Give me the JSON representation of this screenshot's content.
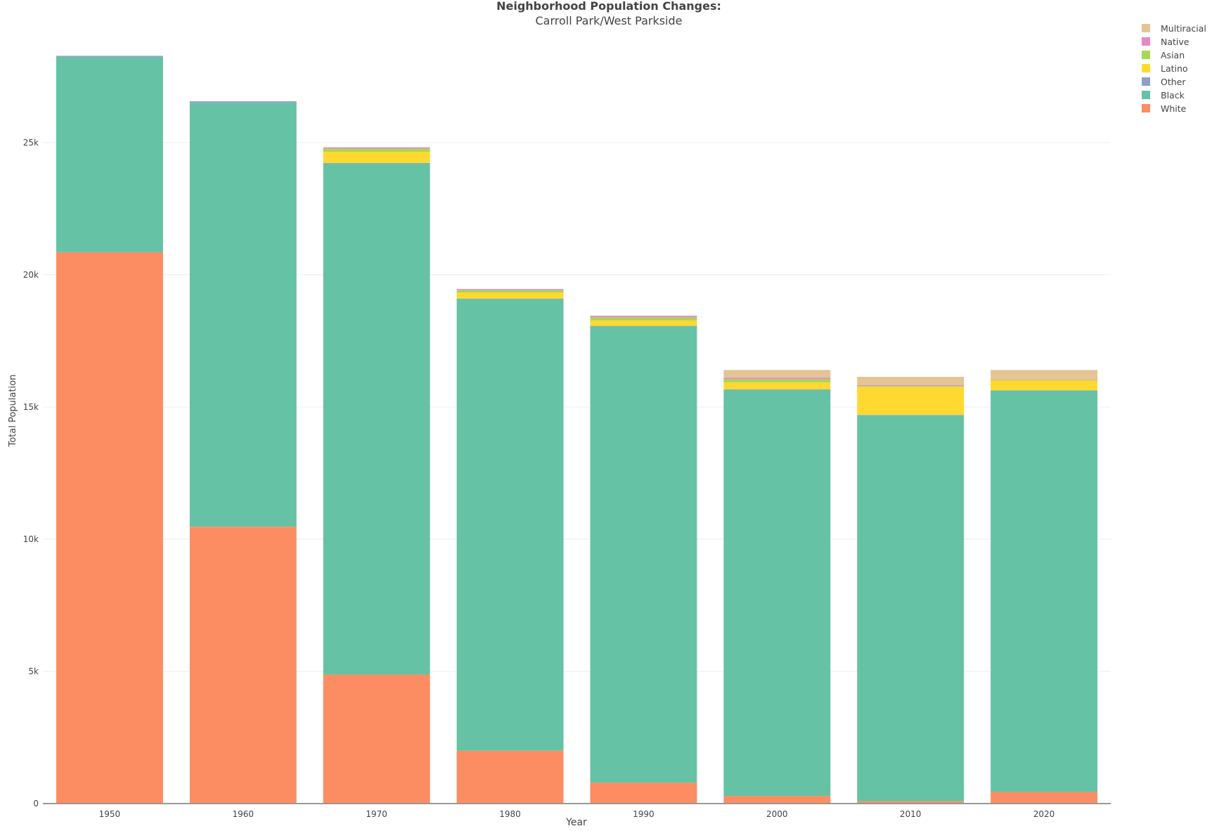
{
  "chart_data": {
    "type": "bar",
    "stacked": true,
    "title": "Neighborhood Population Changes:",
    "subtitle": "Carroll Park/West Parkside",
    "xlabel": "Year",
    "ylabel": "Total Population",
    "categories": [
      "1950",
      "1960",
      "1970",
      "1980",
      "1990",
      "2000",
      "2010",
      "2020"
    ],
    "ylim": [
      0,
      29700
    ],
    "yticks": [
      0,
      5000,
      10000,
      15000,
      20000,
      25000
    ],
    "ytick_labels": [
      "0",
      "5k",
      "10k",
      "15k",
      "20k",
      "25k"
    ],
    "grid": true,
    "legend_position": "top-right",
    "series": [
      {
        "name": "White",
        "color": "#fc8d62",
        "values": [
          20850,
          10470,
          4880,
          2000,
          790,
          290,
          90,
          440
        ]
      },
      {
        "name": "Black",
        "color": "#66c2a5",
        "values": [
          7390,
          16030,
          19330,
          17090,
          17270,
          15360,
          14590,
          15180
        ]
      },
      {
        "name": "Other",
        "color": "#8da0cb",
        "values": [
          40,
          60,
          20,
          10,
          10,
          20,
          20,
          10
        ]
      },
      {
        "name": "Latino",
        "color": "#ffd92f",
        "values": [
          0,
          0,
          420,
          230,
          200,
          260,
          1060,
          380
        ]
      },
      {
        "name": "Asian",
        "color": "#a6d854",
        "values": [
          0,
          0,
          120,
          90,
          120,
          120,
          30,
          10
        ]
      },
      {
        "name": "Native",
        "color": "#e78ac3",
        "values": [
          0,
          0,
          50,
          40,
          60,
          60,
          30,
          10
        ]
      },
      {
        "name": "Multiracial",
        "color": "#e5c494",
        "values": [
          0,
          0,
          0,
          0,
          0,
          290,
          320,
          370
        ]
      }
    ]
  }
}
